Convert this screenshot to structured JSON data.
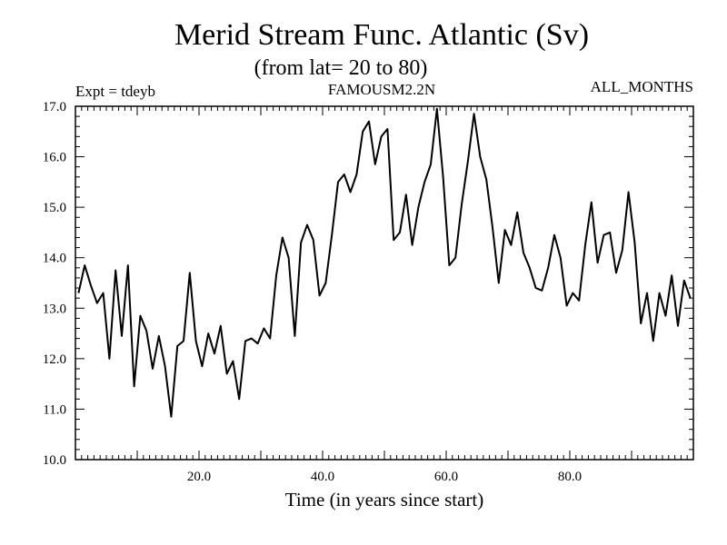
{
  "chart_data": {
    "type": "line",
    "title": "Merid Stream Func. Atlantic (Sv)",
    "subtitle": "(from lat= 20 to 80)",
    "left_label": "Expt = tdeyb",
    "center_label": "FAMOUSM2.2N",
    "right_label": "ALL_MONTHS",
    "xlabel": "Time (in years since start)",
    "ylabel": "",
    "xlim": [
      0,
      100
    ],
    "ylim": [
      10.0,
      17.0
    ],
    "x_ticks": [
      {
        "value": 20,
        "label": "20.0"
      },
      {
        "value": 40,
        "label": "40.0"
      },
      {
        "value": 60,
        "label": "60.0"
      },
      {
        "value": 80,
        "label": "80.0"
      }
    ],
    "y_ticks": [
      {
        "value": 10.0,
        "label": "10.0"
      },
      {
        "value": 11.0,
        "label": "11.0"
      },
      {
        "value": 12.0,
        "label": "12.0"
      },
      {
        "value": 13.0,
        "label": "13.0"
      },
      {
        "value": 14.0,
        "label": "14.0"
      },
      {
        "value": 15.0,
        "label": "15.0"
      },
      {
        "value": 16.0,
        "label": "16.0"
      },
      {
        "value": 17.0,
        "label": "17.0"
      }
    ],
    "grid": false,
    "line_color": "#000000",
    "series": [
      {
        "x": [
          0.5,
          1.5,
          2.5,
          3.5,
          4.5,
          5.5,
          6.5,
          7.5,
          8.5,
          9.5,
          10.5,
          11.5,
          12.5,
          13.5,
          14.5,
          15.5,
          16.5,
          17.5,
          18.5,
          19.5,
          20.5,
          21.5,
          22.5,
          23.5,
          24.5,
          25.5,
          26.5,
          27.5,
          28.5,
          29.5,
          30.5,
          31.5,
          32.5,
          33.5,
          34.5,
          35.5,
          36.5,
          37.5,
          38.5,
          39.5,
          40.5,
          41.5,
          42.5,
          43.5,
          44.5,
          45.5,
          46.5,
          47.5,
          48.5,
          49.5,
          50.5,
          51.5,
          52.5,
          53.5,
          54.5,
          55.5,
          56.5,
          57.5,
          58.5,
          59.5,
          60.5,
          61.5,
          62.5,
          63.5,
          64.5,
          65.5,
          66.5,
          67.5,
          68.5,
          69.5,
          70.5,
          71.5,
          72.5,
          73.5,
          74.5,
          75.5,
          76.5,
          77.5,
          78.5,
          79.5,
          80.5,
          81.5,
          82.5,
          83.5,
          84.5,
          85.5,
          86.5,
          87.5,
          88.5,
          89.5,
          90.5,
          91.5,
          92.5,
          93.5,
          94.5,
          95.5,
          96.5,
          97.5,
          98.5,
          99.5
        ],
        "values": [
          13.3,
          13.85,
          13.45,
          13.1,
          13.3,
          12.0,
          13.75,
          12.45,
          13.85,
          11.45,
          12.85,
          12.55,
          11.8,
          12.45,
          11.85,
          10.85,
          12.25,
          12.35,
          13.7,
          12.35,
          11.85,
          12.5,
          12.1,
          12.65,
          11.7,
          11.95,
          11.2,
          12.35,
          12.4,
          12.3,
          12.6,
          12.4,
          13.65,
          14.4,
          14.0,
          12.45,
          14.3,
          14.65,
          14.35,
          13.25,
          13.5,
          14.45,
          15.5,
          15.65,
          15.3,
          15.65,
          16.5,
          16.7,
          15.85,
          16.4,
          16.55,
          14.35,
          14.5,
          15.25,
          14.25,
          15.0,
          15.5,
          15.85,
          16.95,
          15.6,
          13.85,
          14.0,
          15.05,
          15.9,
          16.85,
          16.0,
          15.55,
          14.6,
          13.5,
          14.55,
          14.25,
          14.9,
          14.1,
          13.8,
          13.4,
          13.35,
          13.8,
          14.45,
          14.0,
          13.05,
          13.3,
          13.15,
          14.25,
          15.1,
          13.9,
          14.45,
          14.5,
          13.7,
          14.15,
          15.3,
          14.3,
          12.7,
          13.3,
          12.35,
          13.3,
          12.85,
          13.65,
          12.65,
          13.55,
          13.2
        ]
      }
    ]
  }
}
